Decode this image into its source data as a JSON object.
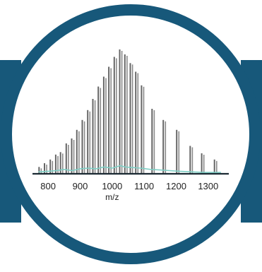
{
  "chart_data": {
    "type": "bar",
    "title": "",
    "xlabel": "m/z",
    "ylabel": "",
    "xlim": [
      760,
      1360
    ],
    "ylim": [
      0,
      100
    ],
    "x_ticks": [
      800,
      900,
      1000,
      1100,
      1200,
      1300
    ],
    "grid": false,
    "legend": "none",
    "series": [
      {
        "x": [
          775,
          792,
          810,
          827,
          842,
          860,
          877,
          893,
          910,
          927,
          943,
          960,
          977,
          993,
          1010,
          1027,
          1043,
          1060,
          1077,
          1095,
          1128,
          1163,
          1205,
          1247,
          1283,
          1323
        ],
        "values": [
          5,
          8,
          11,
          15,
          17,
          24,
          28,
          35,
          43,
          51,
          60,
          70,
          78,
          86,
          94,
          100,
          96,
          89,
          82,
          71,
          52,
          43,
          35,
          22,
          16,
          11
        ]
      },
      {
        "x": [
          770,
          800,
          825,
          850,
          875,
          900,
          925,
          950,
          975,
          1000,
          1025,
          1040,
          1060,
          1090,
          1120,
          1150,
          1180,
          1210,
          1250,
          1290,
          1340
        ],
        "values": [
          1,
          1.5,
          2,
          3,
          2,
          3.5,
          4,
          3.5,
          5,
          4,
          6,
          5,
          4.5,
          4,
          3,
          2.5,
          2,
          1.5,
          1,
          0.5,
          0.5
        ]
      }
    ],
    "colors": {
      "frame": "#17587a",
      "bars": "#666666",
      "trace": "#7fd0c6",
      "axis": "#1b2a33"
    }
  }
}
